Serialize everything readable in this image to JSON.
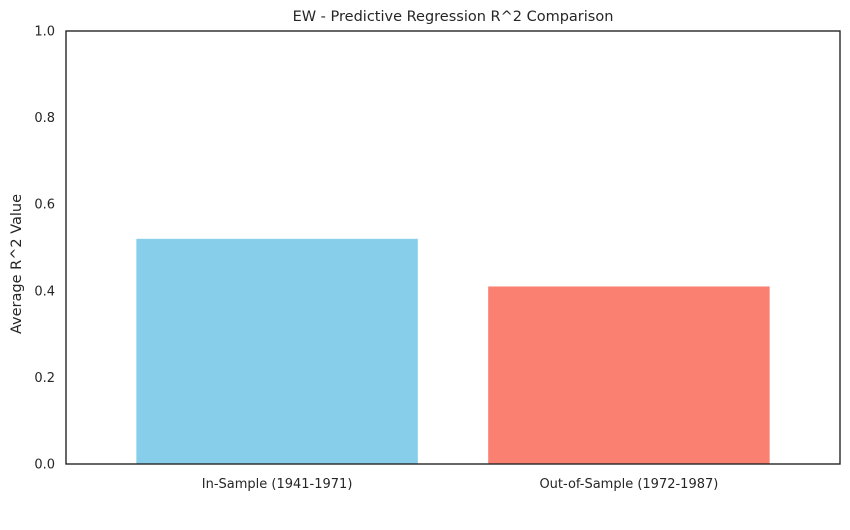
{
  "chart_data": {
    "type": "bar",
    "title": "EW - Predictive Regression R^2 Comparison",
    "xlabel": "",
    "ylabel": "Average R^2 Value",
    "categories": [
      "In-Sample (1941-1971)",
      "Out-of-Sample (1972-1987)"
    ],
    "values": [
      0.52,
      0.41
    ],
    "colors": [
      "#87ceeb",
      "#fa8072"
    ],
    "ylim": [
      0,
      1
    ],
    "yticks": [
      0.0,
      0.2,
      0.4,
      0.6,
      0.8,
      1.0
    ],
    "ytick_labels": [
      "0.0",
      "0.2",
      "0.4",
      "0.6",
      "0.8",
      "1.0"
    ],
    "grid": false,
    "legend": "none"
  }
}
